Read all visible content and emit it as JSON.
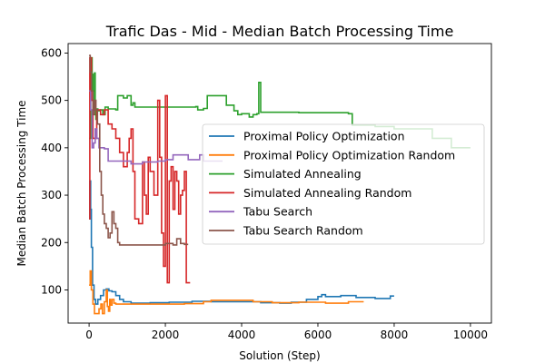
{
  "chart_data": {
    "type": "line",
    "title": "Trafic Das - Mid - Median Batch Processing Time",
    "xlabel": "Solution (Step)",
    "ylabel": "Median Batch Processing Time",
    "xlim": [
      -550,
      10550
    ],
    "ylim": [
      30,
      620
    ],
    "xticks": [
      0,
      2000,
      4000,
      6000,
      8000,
      10000
    ],
    "yticks": [
      100,
      200,
      300,
      400,
      500,
      600
    ],
    "legend_position": "center-right",
    "grid": false,
    "series": [
      {
        "name": "Proximal Policy Optimization",
        "color": "#1f77b4",
        "points": [
          [
            0,
            250
          ],
          [
            20,
            330
          ],
          [
            40,
            270
          ],
          [
            60,
            190
          ],
          [
            90,
            110
          ],
          [
            130,
            80
          ],
          [
            170,
            70
          ],
          [
            230,
            80
          ],
          [
            300,
            88
          ],
          [
            380,
            100
          ],
          [
            450,
            102
          ],
          [
            520,
            98
          ],
          [
            600,
            96
          ],
          [
            700,
            88
          ],
          [
            800,
            80
          ],
          [
            900,
            75
          ],
          [
            1100,
            72
          ],
          [
            1600,
            73
          ],
          [
            2100,
            74
          ],
          [
            2700,
            76
          ],
          [
            3200,
            75
          ],
          [
            3800,
            75
          ],
          [
            4500,
            73
          ],
          [
            5000,
            72
          ],
          [
            5300,
            74
          ],
          [
            5700,
            80
          ],
          [
            6000,
            86
          ],
          [
            6100,
            90
          ],
          [
            6200,
            86
          ],
          [
            6600,
            88
          ],
          [
            7000,
            84
          ],
          [
            7500,
            82
          ],
          [
            7900,
            87
          ],
          [
            8000,
            87
          ]
        ]
      },
      {
        "name": "Proximal Policy Optimization Random",
        "color": "#ff7f0e",
        "points": [
          [
            0,
            110
          ],
          [
            30,
            140
          ],
          [
            60,
            100
          ],
          [
            100,
            70
          ],
          [
            140,
            50
          ],
          [
            200,
            50
          ],
          [
            260,
            60
          ],
          [
            310,
            70
          ],
          [
            350,
            50
          ],
          [
            400,
            75
          ],
          [
            450,
            100
          ],
          [
            480,
            65
          ],
          [
            510,
            55
          ],
          [
            540,
            80
          ],
          [
            560,
            68
          ],
          [
            600,
            80
          ],
          [
            650,
            72
          ],
          [
            700,
            70
          ],
          [
            900,
            70
          ],
          [
            1500,
            70
          ],
          [
            2000,
            70
          ],
          [
            2500,
            71
          ],
          [
            3000,
            75
          ],
          [
            3200,
            78
          ],
          [
            3800,
            78
          ],
          [
            4300,
            75
          ],
          [
            4800,
            73
          ],
          [
            5500,
            74
          ],
          [
            6200,
            72
          ],
          [
            6800,
            75
          ],
          [
            7200,
            75
          ]
        ]
      },
      {
        "name": "Simulated Annealing",
        "color": "#2ca02c",
        "points": [
          [
            0,
            420
          ],
          [
            40,
            590
          ],
          [
            80,
            555
          ],
          [
            100,
            480
          ],
          [
            120,
            520
          ],
          [
            140,
            558
          ],
          [
            160,
            470
          ],
          [
            180,
            460
          ],
          [
            200,
            482
          ],
          [
            230,
            478
          ],
          [
            300,
            480
          ],
          [
            360,
            470
          ],
          [
            420,
            486
          ],
          [
            500,
            482
          ],
          [
            600,
            482
          ],
          [
            700,
            480
          ],
          [
            750,
            510
          ],
          [
            900,
            505
          ],
          [
            1000,
            510
          ],
          [
            1100,
            490
          ],
          [
            1150,
            495
          ],
          [
            1200,
            486
          ],
          [
            1800,
            486
          ],
          [
            2200,
            486
          ],
          [
            2800,
            487
          ],
          [
            2850,
            480
          ],
          [
            3000,
            483
          ],
          [
            3100,
            510
          ],
          [
            3500,
            510
          ],
          [
            3600,
            490
          ],
          [
            3800,
            478
          ],
          [
            3900,
            470
          ],
          [
            4000,
            472
          ],
          [
            4200,
            465
          ],
          [
            4300,
            470
          ],
          [
            4400,
            472
          ],
          [
            4450,
            538
          ],
          [
            4500,
            475
          ],
          [
            5000,
            475
          ],
          [
            5500,
            474
          ],
          [
            6000,
            474
          ],
          [
            6300,
            474
          ],
          [
            6800,
            472
          ],
          [
            6900,
            448
          ],
          [
            7500,
            445
          ],
          [
            8000,
            440
          ],
          [
            9000,
            420
          ],
          [
            9500,
            400
          ],
          [
            10000,
            400
          ]
        ]
      },
      {
        "name": "Simulated Annealing Random",
        "color": "#d62728",
        "points": [
          [
            0,
            250
          ],
          [
            20,
            590
          ],
          [
            60,
            500
          ],
          [
            100,
            420
          ],
          [
            200,
            480
          ],
          [
            300,
            470
          ],
          [
            400,
            480
          ],
          [
            500,
            450
          ],
          [
            600,
            440
          ],
          [
            700,
            420
          ],
          [
            800,
            390
          ],
          [
            900,
            360
          ],
          [
            1000,
            390
          ],
          [
            1050,
            420
          ],
          [
            1100,
            440
          ],
          [
            1150,
            350
          ],
          [
            1200,
            250
          ],
          [
            1300,
            240
          ],
          [
            1400,
            370
          ],
          [
            1450,
            300
          ],
          [
            1500,
            260
          ],
          [
            1550,
            380
          ],
          [
            1600,
            350
          ],
          [
            1700,
            300
          ],
          [
            1800,
            500
          ],
          [
            1850,
            380
          ],
          [
            1900,
            220
          ],
          [
            1950,
            150
          ],
          [
            2000,
            510
          ],
          [
            2050,
            115
          ],
          [
            2100,
            330
          ],
          [
            2150,
            360
          ],
          [
            2200,
            270
          ],
          [
            2250,
            350
          ],
          [
            2300,
            330
          ],
          [
            2350,
            260
          ],
          [
            2400,
            300
          ],
          [
            2450,
            310
          ],
          [
            2500,
            350
          ],
          [
            2550,
            115
          ],
          [
            2600,
            115
          ],
          [
            2650,
            115
          ]
        ]
      },
      {
        "name": "Tabu Search",
        "color": "#9467bd",
        "points": [
          [
            0,
            520
          ],
          [
            40,
            480
          ],
          [
            80,
            400
          ],
          [
            120,
            410
          ],
          [
            160,
            440
          ],
          [
            200,
            420
          ],
          [
            260,
            400
          ],
          [
            400,
            398
          ],
          [
            500,
            372
          ],
          [
            700,
            372
          ],
          [
            1000,
            372
          ],
          [
            1100,
            366
          ],
          [
            1400,
            370
          ],
          [
            1800,
            372
          ],
          [
            2000,
            375
          ],
          [
            2200,
            385
          ],
          [
            2600,
            375
          ],
          [
            2900,
            385
          ],
          [
            3000,
            372
          ],
          [
            3500,
            372
          ]
        ]
      },
      {
        "name": "Tabu Search Random",
        "color": "#8c564b",
        "points": [
          [
            0,
            595
          ],
          [
            30,
            560
          ],
          [
            60,
            520
          ],
          [
            100,
            470
          ],
          [
            140,
            500
          ],
          [
            180,
            480
          ],
          [
            220,
            450
          ],
          [
            280,
            350
          ],
          [
            320,
            300
          ],
          [
            360,
            260
          ],
          [
            400,
            240
          ],
          [
            450,
            230
          ],
          [
            500,
            210
          ],
          [
            550,
            220
          ],
          [
            600,
            265
          ],
          [
            650,
            240
          ],
          [
            700,
            230
          ],
          [
            750,
            200
          ],
          [
            800,
            195
          ],
          [
            1000,
            195
          ],
          [
            1500,
            195
          ],
          [
            2000,
            198
          ],
          [
            2200,
            195
          ],
          [
            2300,
            208
          ],
          [
            2400,
            198
          ],
          [
            2500,
            196
          ],
          [
            2600,
            196
          ]
        ]
      }
    ]
  }
}
